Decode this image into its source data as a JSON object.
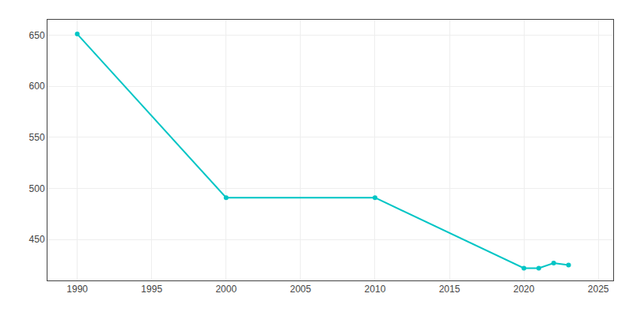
{
  "chart_data": {
    "type": "line",
    "x": [
      1990,
      2000,
      2010,
      2020,
      2021,
      2022,
      2023
    ],
    "values": [
      651,
      491,
      491,
      422,
      422,
      427,
      425
    ],
    "color": "#00C5C5",
    "marker": "circle",
    "line_style": "solid",
    "xlim": [
      1988,
      2026
    ],
    "ylim": [
      410,
      665
    ],
    "xticks": [
      1990,
      1995,
      2000,
      2005,
      2010,
      2015,
      2020,
      2025
    ],
    "yticks": [
      450,
      500,
      550,
      600,
      650
    ],
    "grid": true
  }
}
